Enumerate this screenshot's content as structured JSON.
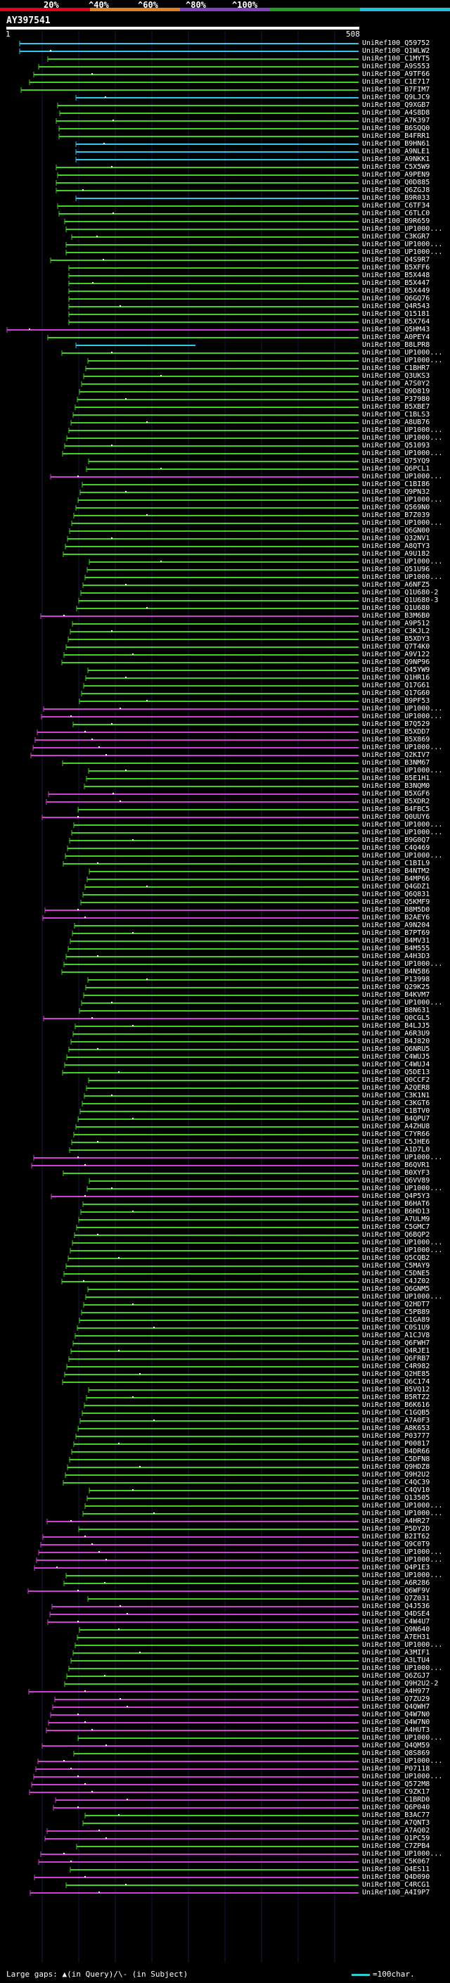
{
  "legend": {
    "marks": [
      "20%",
      "^40%",
      "^60%",
      "^80%",
      "^100%"
    ],
    "colors": [
      "#e0001a",
      "#e08020",
      "#8040c0",
      "#20a020",
      "#20c0e0"
    ]
  },
  "query": {
    "title": "AY397541",
    "start": "1",
    "end": "508"
  },
  "colors": {
    "cyan": "#30c8e8",
    "green": "#40d020",
    "magenta": "#d040d0",
    "white": "#ffffff"
  },
  "hits": [
    {
      "id": "UniRef100_Q59752",
      "c": "cyan"
    },
    {
      "id": "UniRef100_Q1WLW2",
      "c": "cyan"
    },
    {
      "id": "UniRef100_C1MYT5",
      "c": "green"
    },
    {
      "id": "UniRef100_A9S553",
      "c": "green"
    },
    {
      "id": "UniRef100_A9TF66",
      "c": "green"
    },
    {
      "id": "UniRef100_C1E717",
      "c": "green"
    },
    {
      "id": "UniRef100_B7FIM7",
      "c": "green"
    },
    {
      "id": "UniRef100_Q9LJC9",
      "c": "cyan"
    },
    {
      "id": "UniRef100_Q9XGB7",
      "c": "green"
    },
    {
      "id": "UniRef100_A4S8D8",
      "c": "green"
    },
    {
      "id": "UniRef100_A7K397",
      "c": "green"
    },
    {
      "id": "UniRef100_B6SQQ0",
      "c": "green"
    },
    {
      "id": "UniRef100_B4FRR1",
      "c": "green"
    },
    {
      "id": "UniRef100_B9HN61",
      "c": "cyan"
    },
    {
      "id": "UniRef100_A9NLE1",
      "c": "cyan"
    },
    {
      "id": "UniRef100_A9NKK1",
      "c": "cyan"
    },
    {
      "id": "UniRef100_C5X5W9",
      "c": "green"
    },
    {
      "id": "UniRef100_A9PEN9",
      "c": "green"
    },
    {
      "id": "UniRef100_Q0D885",
      "c": "green"
    },
    {
      "id": "UniRef100_Q6ZGJ8",
      "c": "green"
    },
    {
      "id": "UniRef100_B9R033",
      "c": "cyan"
    },
    {
      "id": "UniRef100_C6TF34",
      "c": "green"
    },
    {
      "id": "UniRef100_C6TLC0",
      "c": "green"
    },
    {
      "id": "UniRef100_B9R659",
      "c": "green"
    },
    {
      "id": "UniRef100_UP1000...",
      "c": "green"
    },
    {
      "id": "UniRef100_C3KGR7",
      "c": "green"
    },
    {
      "id": "UniRef100_UP1000...",
      "c": "green"
    },
    {
      "id": "UniRef100_UP1000...",
      "c": "green"
    },
    {
      "id": "UniRef100_Q4S9R7",
      "c": "green"
    },
    {
      "id": "UniRef100_B5XFF6",
      "c": "green"
    },
    {
      "id": "UniRef100_B5X448",
      "c": "green"
    },
    {
      "id": "UniRef100_B5X447",
      "c": "green"
    },
    {
      "id": "UniRef100_B5X449",
      "c": "green"
    },
    {
      "id": "UniRef100_Q6GQ76",
      "c": "green"
    },
    {
      "id": "UniRef100_Q4R543",
      "c": "green"
    },
    {
      "id": "UniRef100_Q15181",
      "c": "green"
    },
    {
      "id": "UniRef100_B5X764",
      "c": "green"
    },
    {
      "id": "UniRef100_Q5HM43",
      "c": "magenta"
    },
    {
      "id": "UniRef100_A0PEY4",
      "c": "green"
    },
    {
      "id": "UniRef100_B8LPR8",
      "c": "cyan"
    },
    {
      "id": "UniRef100_UP1000...",
      "c": "green"
    },
    {
      "id": "UniRef100_UP1000...",
      "c": "green"
    },
    {
      "id": "UniRef100_C1BHR7",
      "c": "green"
    },
    {
      "id": "UniRef100_Q3UKS3",
      "c": "green"
    },
    {
      "id": "UniRef100_A7S0Y2",
      "c": "green"
    },
    {
      "id": "UniRef100_Q9D819",
      "c": "green"
    },
    {
      "id": "UniRef100_P37980",
      "c": "green"
    },
    {
      "id": "UniRef100_B5XBE7",
      "c": "green"
    },
    {
      "id": "UniRef100_C1BLS3",
      "c": "green"
    },
    {
      "id": "UniRef100_A8UB76",
      "c": "green"
    },
    {
      "id": "UniRef100_UP1000...",
      "c": "green"
    },
    {
      "id": "UniRef100_UP1000...",
      "c": "green"
    },
    {
      "id": "UniRef100_Q51093",
      "c": "green"
    },
    {
      "id": "UniRef100_UP1000...",
      "c": "green"
    },
    {
      "id": "UniRef100_Q75YQ9",
      "c": "green"
    },
    {
      "id": "UniRef100_Q6PCL1",
      "c": "green"
    },
    {
      "id": "UniRef100_UP1000...",
      "c": "magenta"
    },
    {
      "id": "UniRef100_C1BI86",
      "c": "green"
    },
    {
      "id": "UniRef100_Q9PN32",
      "c": "green"
    },
    {
      "id": "UniRef100_UP1000...",
      "c": "green"
    },
    {
      "id": "UniRef100_Q569N0",
      "c": "green"
    },
    {
      "id": "UniRef100_B7Z039",
      "c": "green"
    },
    {
      "id": "UniRef100_UP1000...",
      "c": "green"
    },
    {
      "id": "UniRef100_Q6GN00",
      "c": "green"
    },
    {
      "id": "UniRef100_Q32NV1",
      "c": "green"
    },
    {
      "id": "UniRef100_A8QTY3",
      "c": "green"
    },
    {
      "id": "UniRef100_A9U182",
      "c": "green"
    },
    {
      "id": "UniRef100_UP1000...",
      "c": "green"
    },
    {
      "id": "UniRef100_Q51U96",
      "c": "green"
    },
    {
      "id": "UniRef100_UP1000...",
      "c": "green"
    },
    {
      "id": "UniRef100_A6NFZ5",
      "c": "green"
    },
    {
      "id": "UniRef100_Q1U680-2",
      "c": "green"
    },
    {
      "id": "UniRef100_Q1U680-3",
      "c": "green"
    },
    {
      "id": "UniRef100_Q1U680",
      "c": "green"
    },
    {
      "id": "UniRef100_B3M6B0",
      "c": "magenta"
    },
    {
      "id": "UniRef100_A9P512",
      "c": "green"
    },
    {
      "id": "UniRef100_C3KJL2",
      "c": "green"
    },
    {
      "id": "UniRef100_B5XDY3",
      "c": "green"
    },
    {
      "id": "UniRef100_Q7T4K0",
      "c": "green"
    },
    {
      "id": "UniRef100_A9V122",
      "c": "green"
    },
    {
      "id": "UniRef100_Q9NP96",
      "c": "green"
    },
    {
      "id": "UniRef100_Q45YW9",
      "c": "green"
    },
    {
      "id": "UniRef100_Q1HR16",
      "c": "green"
    },
    {
      "id": "UniRef100_Q17G61",
      "c": "green"
    },
    {
      "id": "UniRef100_Q17G60",
      "c": "green"
    },
    {
      "id": "UniRef100_B9PF53",
      "c": "green"
    },
    {
      "id": "UniRef100_UP1000...",
      "c": "magenta"
    },
    {
      "id": "UniRef100_UP1000...",
      "c": "magenta"
    },
    {
      "id": "UniRef100_B7Q529",
      "c": "green"
    },
    {
      "id": "UniRef100_B5XDD7",
      "c": "magenta"
    },
    {
      "id": "UniRef100_B5X869",
      "c": "magenta"
    },
    {
      "id": "UniRef100_UP1000...",
      "c": "magenta"
    },
    {
      "id": "UniRef100_Q2KIV7",
      "c": "magenta"
    },
    {
      "id": "UniRef100_B3NM67",
      "c": "green"
    },
    {
      "id": "UniRef100_UP1000...",
      "c": "green"
    },
    {
      "id": "UniRef100_B5E1H1",
      "c": "green"
    },
    {
      "id": "UniRef100_B3NQM0",
      "c": "green"
    },
    {
      "id": "UniRef100_B5XGF6",
      "c": "magenta"
    },
    {
      "id": "UniRef100_B5XDR2",
      "c": "magenta"
    },
    {
      "id": "UniRef100_B4FBC5",
      "c": "green"
    },
    {
      "id": "UniRef100_Q0UUY6",
      "c": "magenta"
    },
    {
      "id": "UniRef100_UP1000...",
      "c": "green"
    },
    {
      "id": "UniRef100_UP1000...",
      "c": "green"
    },
    {
      "id": "UniRef100_B9G0Q7",
      "c": "green"
    },
    {
      "id": "UniRef100_C4Q469",
      "c": "green"
    },
    {
      "id": "UniRef100_UP1000...",
      "c": "green"
    },
    {
      "id": "UniRef100_C1BIL9",
      "c": "green"
    },
    {
      "id": "UniRef100_B4NTM2",
      "c": "green"
    },
    {
      "id": "UniRef100_B4MP66",
      "c": "green"
    },
    {
      "id": "UniRef100_Q4GDZ1",
      "c": "green"
    },
    {
      "id": "UniRef100_Q6Q831",
      "c": "green"
    },
    {
      "id": "UniRef100_Q5KMF9",
      "c": "green"
    },
    {
      "id": "UniRef100_B8M5D0",
      "c": "magenta"
    },
    {
      "id": "UniRef100_B2AEY6",
      "c": "magenta"
    },
    {
      "id": "UniRef100_A9N204",
      "c": "green"
    },
    {
      "id": "UniRef100_B7PT69",
      "c": "green"
    },
    {
      "id": "UniRef100_B4MV31",
      "c": "green"
    },
    {
      "id": "UniRef100_B4M555",
      "c": "green"
    },
    {
      "id": "UniRef100_A4H3D3",
      "c": "green"
    },
    {
      "id": "UniRef100_UP1000...",
      "c": "green"
    },
    {
      "id": "UniRef100_B4N586",
      "c": "green"
    },
    {
      "id": "UniRef100_P13998",
      "c": "green"
    },
    {
      "id": "UniRef100_Q29K25",
      "c": "green"
    },
    {
      "id": "UniRef100_B4KVM7",
      "c": "green"
    },
    {
      "id": "UniRef100_UP1000...",
      "c": "green"
    },
    {
      "id": "UniRef100_B8N631",
      "c": "green"
    },
    {
      "id": "UniRef100_Q0CGL5",
      "c": "magenta"
    },
    {
      "id": "UniRef100_B4LJJ5",
      "c": "green"
    },
    {
      "id": "UniRef100_A6R3U9",
      "c": "green"
    },
    {
      "id": "UniRef100_B4J820",
      "c": "green"
    },
    {
      "id": "UniRef100_Q6NRU5",
      "c": "green"
    },
    {
      "id": "UniRef100_C4WUJ5",
      "c": "green"
    },
    {
      "id": "UniRef100_C4WUJ4",
      "c": "green"
    },
    {
      "id": "UniRef100_Q5DE13",
      "c": "green"
    },
    {
      "id": "UniRef100_Q0CCF2",
      "c": "green"
    },
    {
      "id": "UniRef100_A2QER8",
      "c": "green"
    },
    {
      "id": "UniRef100_C3K1N1",
      "c": "green"
    },
    {
      "id": "UniRef100_C3KGT6",
      "c": "green"
    },
    {
      "id": "UniRef100_C1BTV0",
      "c": "green"
    },
    {
      "id": "UniRef100_B4QPU7",
      "c": "green"
    },
    {
      "id": "UniRef100_A4ZHU8",
      "c": "green"
    },
    {
      "id": "UniRef100_C7YR66",
      "c": "green"
    },
    {
      "id": "UniRef100_C5JHE6",
      "c": "green"
    },
    {
      "id": "UniRef100_A1D7L0",
      "c": "green"
    },
    {
      "id": "UniRef100_UP1000...",
      "c": "magenta"
    },
    {
      "id": "UniRef100_B6QVR1",
      "c": "magenta"
    },
    {
      "id": "UniRef100_B0XYF3",
      "c": "green"
    },
    {
      "id": "UniRef100_Q6VV89",
      "c": "green"
    },
    {
      "id": "UniRef100_UP1000...",
      "c": "green"
    },
    {
      "id": "UniRef100_Q4P5Y3",
      "c": "magenta"
    },
    {
      "id": "UniRef100_B6HAT6",
      "c": "green"
    },
    {
      "id": "UniRef100_B6HD13",
      "c": "green"
    },
    {
      "id": "UniRef100_A7ULM9",
      "c": "green"
    },
    {
      "id": "UniRef100_C5GMC7",
      "c": "green"
    },
    {
      "id": "UniRef100_Q6BQP2",
      "c": "green"
    },
    {
      "id": "UniRef100_UP1000...",
      "c": "green"
    },
    {
      "id": "UniRef100_UP1000...",
      "c": "green"
    },
    {
      "id": "UniRef100_Q5CQB2",
      "c": "green"
    },
    {
      "id": "UniRef100_C5MAY9",
      "c": "green"
    },
    {
      "id": "UniRef100_C5DNE5",
      "c": "green"
    },
    {
      "id": "UniRef100_C4JZ02",
      "c": "green"
    },
    {
      "id": "UniRef100_Q6GNM5",
      "c": "green"
    },
    {
      "id": "UniRef100_UP1000...",
      "c": "green"
    },
    {
      "id": "UniRef100_Q2HDT7",
      "c": "green"
    },
    {
      "id": "UniRef100_C5PB89",
      "c": "green"
    },
    {
      "id": "UniRef100_C1GA89",
      "c": "green"
    },
    {
      "id": "UniRef100_C0S1U9",
      "c": "green"
    },
    {
      "id": "UniRef100_A1CJV8",
      "c": "green"
    },
    {
      "id": "UniRef100_Q6FWH7",
      "c": "green"
    },
    {
      "id": "UniRef100_Q4RJE1",
      "c": "green"
    },
    {
      "id": "UniRef100_Q6FRB7",
      "c": "green"
    },
    {
      "id": "UniRef100_C4R982",
      "c": "green"
    },
    {
      "id": "UniRef100_Q2HE85",
      "c": "green"
    },
    {
      "id": "UniRef100_Q6C174",
      "c": "green"
    },
    {
      "id": "UniRef100_B5VQ12",
      "c": "green"
    },
    {
      "id": "UniRef100_B5RTZ2",
      "c": "green"
    },
    {
      "id": "UniRef100_B6K616",
      "c": "green"
    },
    {
      "id": "UniRef100_C1GQB5",
      "c": "green"
    },
    {
      "id": "UniRef100_A7A0F3",
      "c": "green"
    },
    {
      "id": "UniRef100_A8K653",
      "c": "green"
    },
    {
      "id": "UniRef100_P03777",
      "c": "green"
    },
    {
      "id": "UniRef100_P00817",
      "c": "green"
    },
    {
      "id": "UniRef100_B4DR66",
      "c": "green"
    },
    {
      "id": "UniRef100_C5DFN8",
      "c": "green"
    },
    {
      "id": "UniRef100_Q9HDZ8",
      "c": "green"
    },
    {
      "id": "UniRef100_Q9H2U2",
      "c": "green"
    },
    {
      "id": "UniRef100_C4QC39",
      "c": "green"
    },
    {
      "id": "UniRef100_C4QV10",
      "c": "green"
    },
    {
      "id": "UniRef100_Q13505",
      "c": "green"
    },
    {
      "id": "UniRef100_UP1000...",
      "c": "green"
    },
    {
      "id": "UniRef100_UP1000...",
      "c": "green"
    },
    {
      "id": "UniRef100_A4HR27",
      "c": "magenta"
    },
    {
      "id": "UniRef100_P5DY2D",
      "c": "green"
    },
    {
      "id": "UniRef100_B2IT62",
      "c": "magenta"
    },
    {
      "id": "UniRef100_Q9C0T9",
      "c": "magenta"
    },
    {
      "id": "UniRef100_UP1000...",
      "c": "magenta"
    },
    {
      "id": "UniRef100_UP1000...",
      "c": "magenta"
    },
    {
      "id": "UniRef100_Q4P1E3",
      "c": "magenta"
    },
    {
      "id": "UniRef100_UP1000...",
      "c": "green"
    },
    {
      "id": "UniRef100_A6R286",
      "c": "green"
    },
    {
      "id": "UniRef100_Q6WF9V",
      "c": "magenta"
    },
    {
      "id": "UniRef100_Q7Z031",
      "c": "green"
    },
    {
      "id": "UniRef100_Q4J536",
      "c": "magenta"
    },
    {
      "id": "UniRef100_Q4DSE4",
      "c": "magenta"
    },
    {
      "id": "UniRef100_C4W4U7",
      "c": "magenta"
    },
    {
      "id": "UniRef100_Q9N640",
      "c": "green"
    },
    {
      "id": "UniRef100_A7EH31",
      "c": "green"
    },
    {
      "id": "UniRef100_UP1000...",
      "c": "green"
    },
    {
      "id": "UniRef100_A3MIF1",
      "c": "green"
    },
    {
      "id": "UniRef100_A3LTU4",
      "c": "green"
    },
    {
      "id": "UniRef100_UP1000...",
      "c": "green"
    },
    {
      "id": "UniRef100_Q6ZGJ7",
      "c": "green"
    },
    {
      "id": "UniRef100_Q9H2U2-2",
      "c": "green"
    },
    {
      "id": "UniRef100_A4H977",
      "c": "magenta"
    },
    {
      "id": "UniRef100_Q7ZU29",
      "c": "magenta"
    },
    {
      "id": "UniRef100_Q4QWH7",
      "c": "magenta"
    },
    {
      "id": "UniRef100_Q4W7N0",
      "c": "magenta"
    },
    {
      "id": "UniRef100_Q4W7N0",
      "c": "magenta"
    },
    {
      "id": "UniRef100_A4HUT3",
      "c": "magenta"
    },
    {
      "id": "UniRef100_UP1000...",
      "c": "green"
    },
    {
      "id": "UniRef100_Q4QM59",
      "c": "magenta"
    },
    {
      "id": "UniRef100_Q8S869",
      "c": "green"
    },
    {
      "id": "UniRef100_UP1000...",
      "c": "magenta"
    },
    {
      "id": "UniRef100_P07118",
      "c": "magenta"
    },
    {
      "id": "UniRef100_UP1000...",
      "c": "magenta"
    },
    {
      "id": "UniRef100_Q572M8",
      "c": "magenta"
    },
    {
      "id": "UniRef100_C9ZK17",
      "c": "magenta"
    },
    {
      "id": "UniRef100_C1BRD0",
      "c": "magenta"
    },
    {
      "id": "UniRef100_Q6P040",
      "c": "magenta"
    },
    {
      "id": "UniRef100_B3AC77",
      "c": "green"
    },
    {
      "id": "UniRef100_A7QNT3",
      "c": "green"
    },
    {
      "id": "UniRef100_A7AQ02",
      "c": "magenta"
    },
    {
      "id": "UniRef100_Q1PC59",
      "c": "magenta"
    },
    {
      "id": "UniRef100_C7ZPB4",
      "c": "green"
    },
    {
      "id": "UniRef100_UP1000...",
      "c": "magenta"
    },
    {
      "id": "UniRef100_C5K067",
      "c": "magenta"
    },
    {
      "id": "UniRef100_Q4ES11",
      "c": "green"
    },
    {
      "id": "UniRef100_Q4D090",
      "c": "magenta"
    },
    {
      "id": "UniRef100_C4RCG1",
      "c": "green"
    },
    {
      "id": "UniRef100_A4I9P7",
      "c": "magenta"
    }
  ],
  "footer": {
    "left": "Large gaps: ▲(in Query)/\\- (in Subject)",
    "right": "=100char."
  }
}
